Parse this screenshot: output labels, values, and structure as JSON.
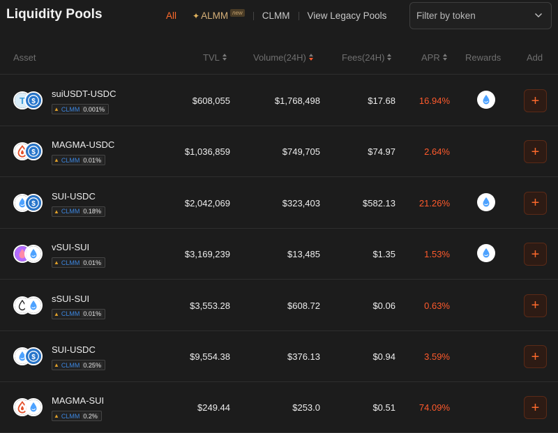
{
  "page": {
    "title": "Liquidity Pools"
  },
  "tabs": [
    {
      "label": "All",
      "active": true
    },
    {
      "label": "ALMM",
      "badge": "new"
    },
    {
      "label": "CLMM"
    },
    {
      "label": "View Legacy Pools"
    }
  ],
  "filter": {
    "placeholder": "Filter by token"
  },
  "columns": {
    "asset": "Asset",
    "tvl": "TVL",
    "volume": "Volume(24H)",
    "fees": "Fees(24H)",
    "apr": "APR",
    "rewards": "Rewards",
    "add": "Add"
  },
  "colors": {
    "accent": "#ff5a2c",
    "background": "#1c1c1c",
    "clmm": "#3c86e0"
  },
  "rows": [
    {
      "pair": "suiUSDT-USDC",
      "type": "CLMM",
      "fee": "0.001%",
      "tvl": "$608,055",
      "volume": "$1,768,498",
      "fees": "$17.68",
      "apr": "16.94%",
      "reward": "sui-icon",
      "icons": [
        "usdt-icon",
        "usdc-icon"
      ]
    },
    {
      "pair": "MAGMA-USDC",
      "type": "CLMM",
      "fee": "0.01%",
      "tvl": "$1,036,859",
      "volume": "$749,705",
      "fees": "$74.97",
      "apr": "2.64%",
      "reward": null,
      "icons": [
        "magma-icon",
        "usdc-icon"
      ]
    },
    {
      "pair": "SUI-USDC",
      "type": "CLMM",
      "fee": "0.18%",
      "tvl": "$2,042,069",
      "volume": "$323,403",
      "fees": "$582.13",
      "apr": "21.26%",
      "reward": "sui-icon",
      "icons": [
        "sui-icon",
        "usdc-icon"
      ]
    },
    {
      "pair": "vSUI-SUI",
      "type": "CLMM",
      "fee": "0.01%",
      "tvl": "$3,169,239",
      "volume": "$13,485",
      "fees": "$1.35",
      "apr": "1.53%",
      "reward": "sui-icon",
      "icons": [
        "vsui-icon",
        "sui-icon"
      ]
    },
    {
      "pair": "sSUI-SUI",
      "type": "CLMM",
      "fee": "0.01%",
      "tvl": "$3,553.28",
      "volume": "$608.72",
      "fees": "$0.06",
      "apr": "0.63%",
      "reward": null,
      "icons": [
        "ssui-icon",
        "sui-icon"
      ]
    },
    {
      "pair": "SUI-USDC",
      "type": "CLMM",
      "fee": "0.25%",
      "tvl": "$9,554.38",
      "volume": "$376.13",
      "fees": "$0.94",
      "apr": "3.59%",
      "reward": null,
      "icons": [
        "sui-icon",
        "usdc-icon"
      ]
    },
    {
      "pair": "MAGMA-SUI",
      "type": "CLMM",
      "fee": "0.2%",
      "tvl": "$249.44",
      "volume": "$253.0",
      "fees": "$0.51",
      "apr": "74.09%",
      "reward": null,
      "icons": [
        "magma-icon",
        "sui-icon"
      ]
    }
  ]
}
